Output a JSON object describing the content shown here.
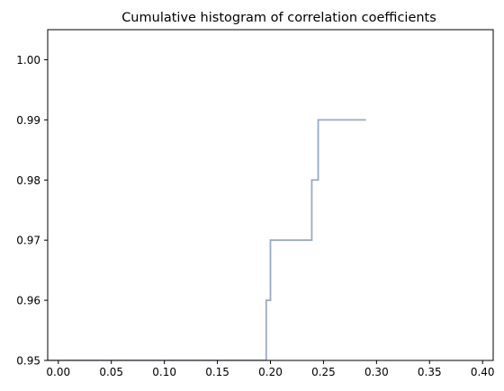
{
  "chart_data": {
    "type": "line",
    "title": "Cumulative histogram of correlation coefficients",
    "xlabel": "",
    "ylabel": "",
    "xlim": [
      -0.01,
      0.41
    ],
    "ylim": [
      0.95,
      1.005
    ],
    "xticks": [
      0.0,
      0.05,
      0.1,
      0.15,
      0.2,
      0.25,
      0.3,
      0.35,
      0.4
    ],
    "xtick_labels": [
      "0.00",
      "0.05",
      "0.10",
      "0.15",
      "0.20",
      "0.25",
      "0.30",
      "0.35",
      "0.40"
    ],
    "yticks": [
      0.95,
      0.96,
      0.97,
      0.98,
      0.99,
      1.0
    ],
    "ytick_labels": [
      "0.95",
      "0.96",
      "0.97",
      "0.98",
      "0.99",
      "1.00"
    ],
    "grid": false,
    "legend": false,
    "series": [
      {
        "color": "#9ba8c8",
        "step": "post",
        "points": [
          [
            -0.01,
            0.95
          ],
          [
            0.196,
            0.95
          ],
          [
            0.196,
            0.96
          ],
          [
            0.2,
            0.96
          ],
          [
            0.2,
            0.97
          ],
          [
            0.239,
            0.97
          ],
          [
            0.239,
            0.98
          ],
          [
            0.245,
            0.98
          ],
          [
            0.245,
            0.99
          ],
          [
            0.29,
            0.99
          ]
        ]
      }
    ]
  }
}
